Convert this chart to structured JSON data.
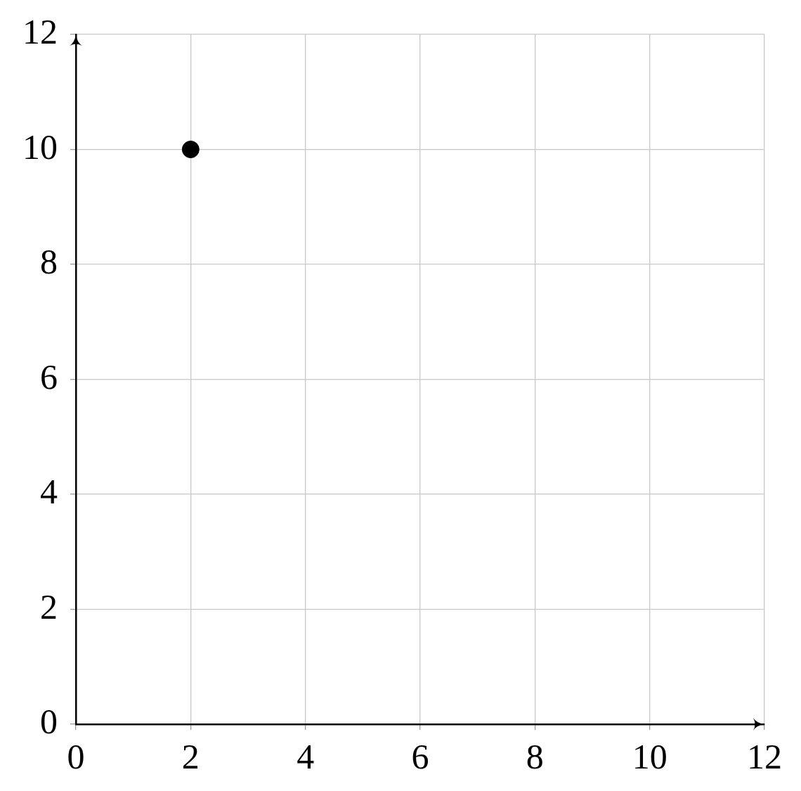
{
  "chart_data": {
    "type": "scatter",
    "x": [
      2
    ],
    "values": [
      10
    ],
    "color": "#000000",
    "marker": "circle",
    "xlim": [
      0,
      12
    ],
    "ylim": [
      0,
      12
    ],
    "xticks": [
      0,
      2,
      4,
      6,
      8,
      10,
      12
    ],
    "yticks": [
      0,
      2,
      4,
      6,
      8,
      10,
      12
    ],
    "grid": true
  }
}
